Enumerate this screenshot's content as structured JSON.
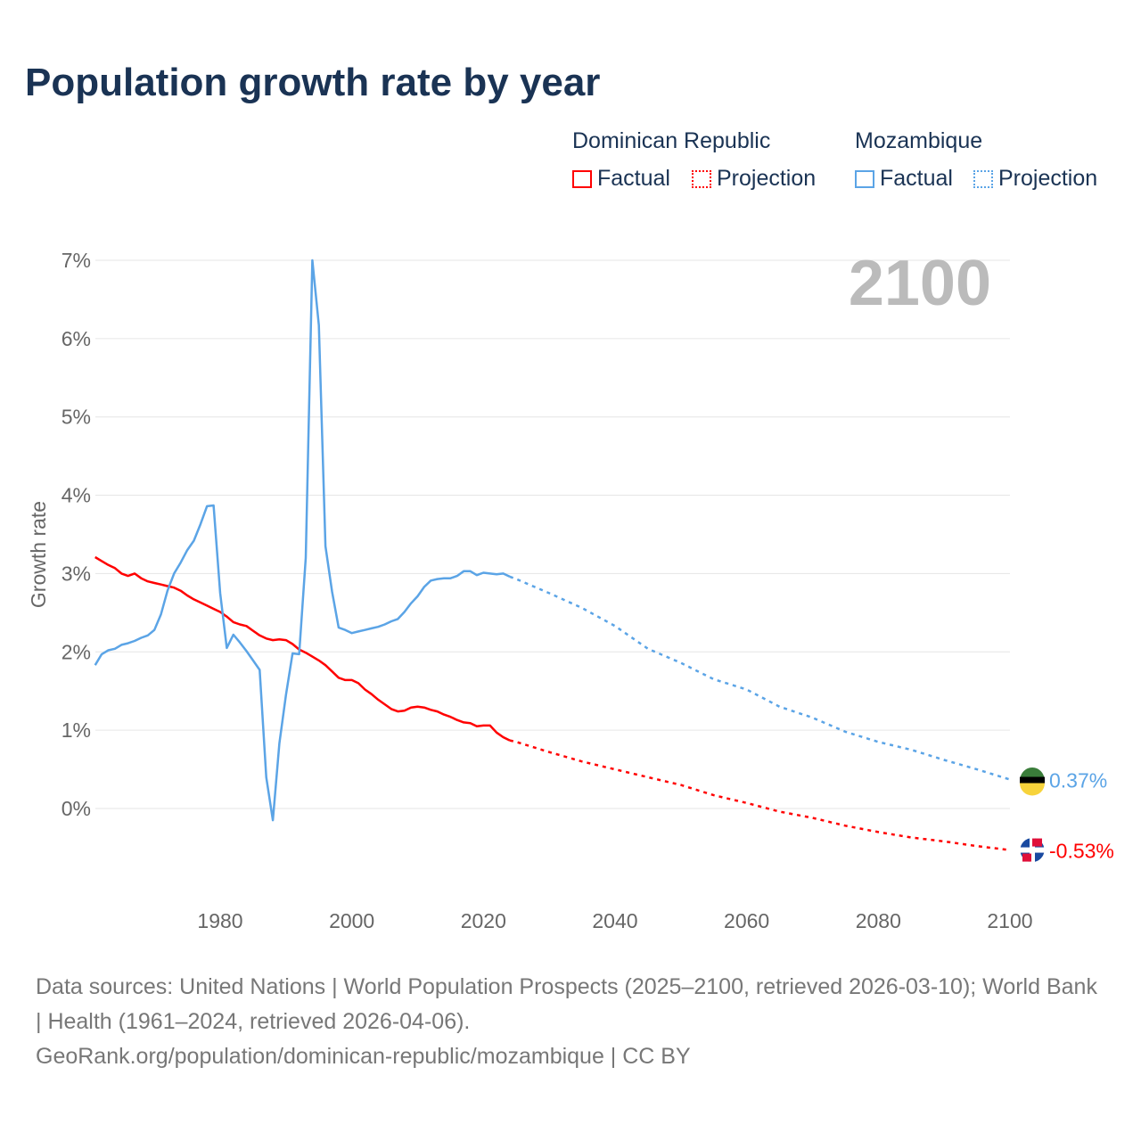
{
  "chart_data": {
    "type": "line",
    "title": "Population growth rate by year",
    "ylabel": "Growth rate",
    "xlabel": "",
    "year_label": "2100",
    "xlim": [
      1961,
      2100
    ],
    "ylim": [
      -1.1,
      7
    ],
    "xticks": [
      1980,
      2000,
      2020,
      2040,
      2060,
      2080,
      2100
    ],
    "yticks": [
      {
        "v": 0,
        "label": "0%"
      },
      {
        "v": 1,
        "label": "1%"
      },
      {
        "v": 2,
        "label": "2%"
      },
      {
        "v": 3,
        "label": "3%"
      },
      {
        "v": 4,
        "label": "4%"
      },
      {
        "v": 5,
        "label": "5%"
      },
      {
        "v": 6,
        "label": "6%"
      },
      {
        "v": 7,
        "label": "7%"
      }
    ],
    "grid": true,
    "legend_position": "top-right",
    "legend": {
      "groups": [
        {
          "name": "Dominican Republic",
          "factual": "Factual",
          "projection": "Projection"
        },
        {
          "name": "Mozambique",
          "factual": "Factual",
          "projection": "Projection"
        }
      ]
    },
    "series": [
      {
        "name": "Dominican Republic",
        "color": "#ff0000",
        "end_label": "-0.53%",
        "factual": {
          "start": 1961,
          "values": [
            3.21,
            3.16,
            3.11,
            3.07,
            3.0,
            2.97,
            3.0,
            2.94,
            2.9,
            2.88,
            2.86,
            2.84,
            2.82,
            2.78,
            2.72,
            2.67,
            2.63,
            2.59,
            2.55,
            2.51,
            2.45,
            2.38,
            2.35,
            2.33,
            2.27,
            2.21,
            2.17,
            2.15,
            2.16,
            2.15,
            2.1,
            2.03,
            1.99,
            1.94,
            1.89,
            1.83,
            1.75,
            1.67,
            1.64,
            1.64,
            1.6,
            1.52,
            1.46,
            1.39,
            1.33,
            1.27,
            1.24,
            1.25,
            1.29,
            1.3,
            1.29,
            1.26,
            1.24,
            1.2,
            1.17,
            1.13,
            1.1,
            1.09,
            1.05,
            1.06,
            1.06,
            0.97,
            0.91,
            0.87
          ]
        },
        "projection": {
          "x": [
            2024,
            2025,
            2030,
            2035,
            2040,
            2045,
            2050,
            2055,
            2060,
            2065,
            2070,
            2075,
            2080,
            2085,
            2090,
            2095,
            2100
          ],
          "values": [
            0.87,
            0.85,
            0.72,
            0.6,
            0.5,
            0.4,
            0.3,
            0.17,
            0.07,
            -0.04,
            -0.12,
            -0.22,
            -0.3,
            -0.37,
            -0.42,
            -0.48,
            -0.53
          ]
        }
      },
      {
        "name": "Mozambique",
        "color": "#5ba4e6",
        "end_label": "0.37%",
        "factual": {
          "start": 1961,
          "values": [
            1.83,
            1.97,
            2.02,
            2.04,
            2.09,
            2.11,
            2.14,
            2.18,
            2.21,
            2.28,
            2.48,
            2.78,
            3.0,
            3.14,
            3.3,
            3.42,
            3.63,
            3.86,
            3.87,
            2.75,
            2.05,
            2.22,
            2.12,
            2.01,
            1.89,
            1.77,
            0.4,
            -0.15,
            0.83,
            1.45,
            1.98,
            1.97,
            3.2,
            7.0,
            6.17,
            3.35,
            2.77,
            2.31,
            2.28,
            2.24,
            2.26,
            2.28,
            2.3,
            2.32,
            2.35,
            2.39,
            2.42,
            2.51,
            2.62,
            2.71,
            2.83,
            2.91,
            2.93,
            2.94,
            2.94,
            2.97,
            3.03,
            3.03,
            2.98,
            3.01,
            3.0,
            2.99,
            3.0,
            2.96
          ]
        },
        "projection": {
          "x": [
            2024,
            2025,
            2030,
            2035,
            2040,
            2045,
            2050,
            2055,
            2060,
            2065,
            2070,
            2075,
            2080,
            2085,
            2090,
            2095,
            2100
          ],
          "values": [
            2.96,
            2.93,
            2.75,
            2.56,
            2.33,
            2.04,
            1.86,
            1.65,
            1.52,
            1.3,
            1.16,
            0.98,
            0.85,
            0.75,
            0.62,
            0.5,
            0.37
          ]
        }
      }
    ]
  },
  "footer": {
    "line1": "Data sources: United Nations | World Population Prospects (2025–2100, retrieved 2026-03-10); World Bank | Health (1961–2024, retrieved 2026-04-06).",
    "line2": "GeoRank.org/population/dominican-republic/mozambique | CC BY"
  }
}
